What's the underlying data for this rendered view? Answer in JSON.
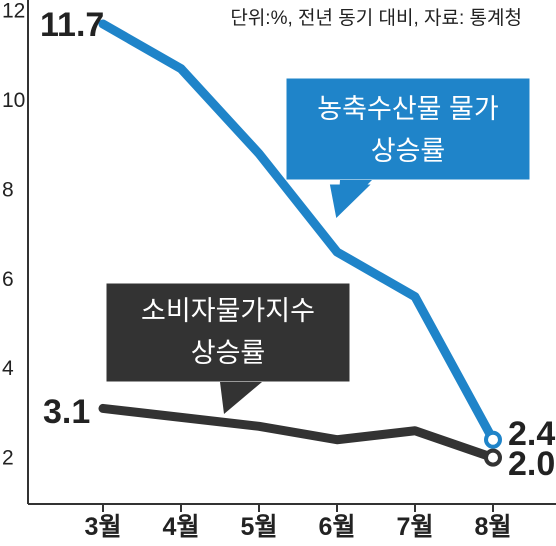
{
  "source_note": "단위:%, 전년 동기 대비, 자료: 통계청",
  "colors": {
    "blue": "#1f84c9",
    "black": "#333333",
    "axis": "#333333",
    "callout_blue": "#1f84c9",
    "callout_dark": "#333333"
  },
  "chart_data": {
    "type": "line",
    "x": [
      "3월",
      "4월",
      "5월",
      "6월",
      "7월",
      "8월"
    ],
    "y_ticks": [
      "2",
      "4",
      "6",
      "8",
      "10",
      "12"
    ],
    "ylim": [
      0,
      12
    ],
    "grid": false,
    "series": [
      {
        "name": "농축수산물 물가 상승률",
        "color": "#1f84c9",
        "values": [
          11.7,
          10.7,
          8.8,
          6.6,
          5.6,
          2.4
        ]
      },
      {
        "name": "소비자물가지수 상승률",
        "color": "#333333",
        "values": [
          3.1,
          2.9,
          2.7,
          2.4,
          2.6,
          2.0
        ]
      }
    ],
    "annotations": {
      "start_label": "3.1",
      "start_label_blue": "11.7",
      "end_label_blue": "2.4",
      "end_label_black": "2.0"
    },
    "callouts": {
      "blue_line1": "농축수산물 물가",
      "blue_line2": "상승률",
      "black_line1": "소비자물가지수",
      "black_line2": "상승률"
    }
  }
}
